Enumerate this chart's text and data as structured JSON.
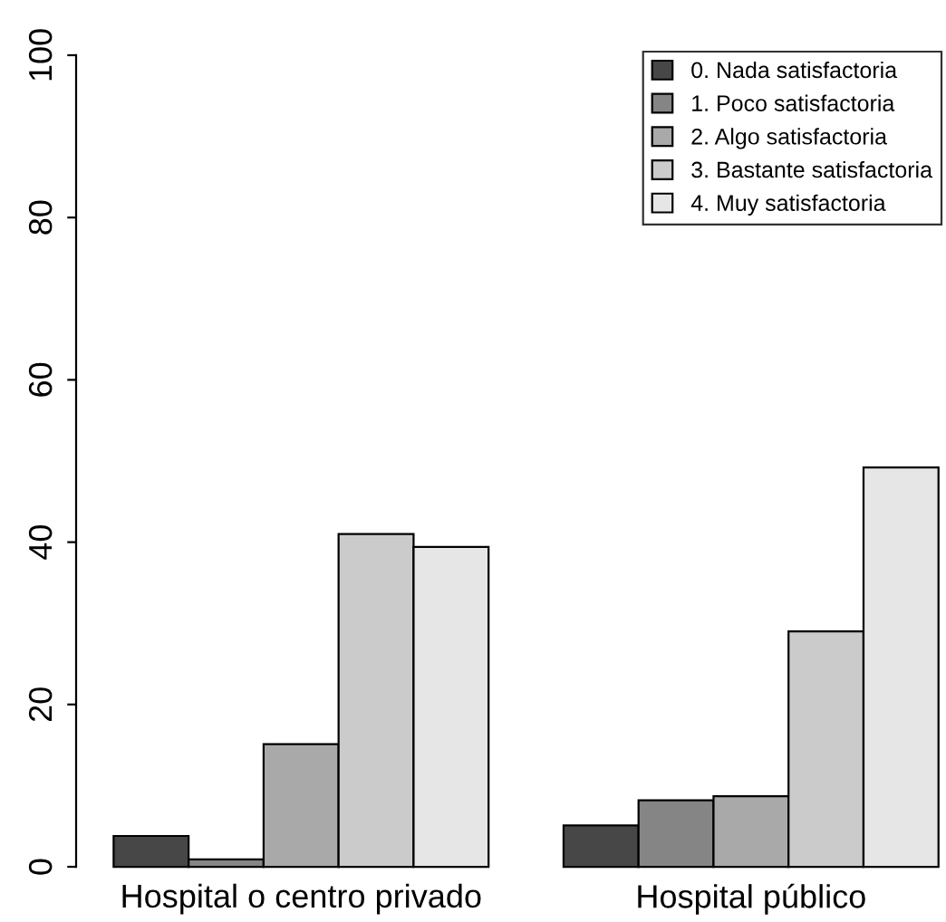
{
  "chart_data": {
    "type": "bar",
    "categories": [
      "Hospital o centro privado",
      "Hospital público"
    ],
    "series": [
      {
        "name": "0. Nada satisfactoria",
        "color": "#474747",
        "values": [
          3.8,
          5.1
        ]
      },
      {
        "name": "1. Poco satisfactoria",
        "color": "#858585",
        "values": [
          0.9,
          8.2
        ]
      },
      {
        "name": "2. Algo satisfactoria",
        "color": "#a9a9a9",
        "values": [
          15.1,
          8.7
        ]
      },
      {
        "name": "3. Bastante satisfactoria",
        "color": "#cbcbcb",
        "values": [
          41.0,
          29.0
        ]
      },
      {
        "name": "4. Muy satisfactoria",
        "color": "#e6e6e6",
        "values": [
          39.4,
          49.2
        ]
      }
    ],
    "ylim": [
      0,
      100
    ],
    "yticks": [
      0,
      20,
      40,
      60,
      80,
      100
    ],
    "legend": "top right"
  }
}
